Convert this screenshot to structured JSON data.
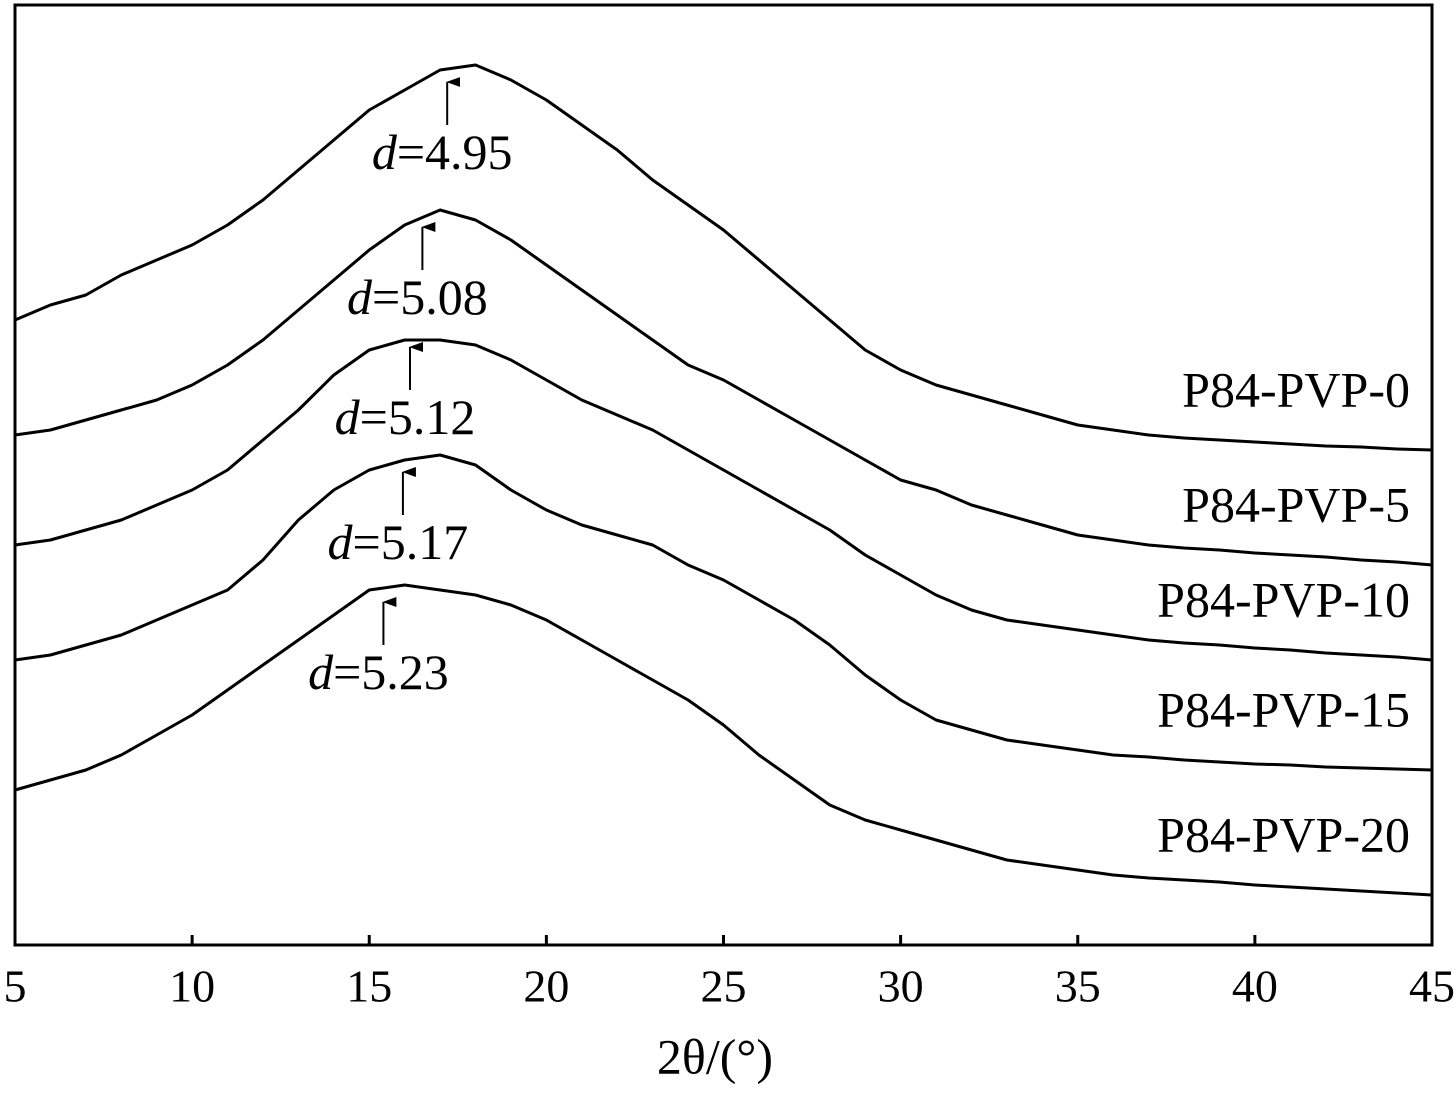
{
  "chart_data": {
    "type": "line",
    "x_label": "2θ/(°)",
    "x": [
      5,
      6,
      7,
      8,
      9,
      10,
      11,
      12,
      13,
      14,
      15,
      16,
      17,
      18,
      19,
      20,
      21,
      22,
      23,
      24,
      25,
      26,
      27,
      28,
      29,
      30,
      31,
      32,
      33,
      34,
      35,
      36,
      37,
      38,
      39,
      40,
      41,
      42,
      43,
      44,
      45
    ],
    "xlim": [
      5,
      45
    ],
    "xticks": [
      5,
      10,
      15,
      20,
      25,
      30,
      35,
      40,
      45
    ],
    "ylim": [
      0,
      940
    ],
    "color": "#000000",
    "series": [
      {
        "name": "P84-PVP-0",
        "values": [
          625,
          640,
          650,
          670,
          685,
          700,
          720,
          745,
          775,
          805,
          835,
          855,
          875,
          880,
          865,
          845,
          820,
          795,
          765,
          740,
          715,
          685,
          655,
          625,
          595,
          575,
          560,
          550,
          540,
          530,
          520,
          515,
          510,
          507,
          505,
          503,
          501,
          499,
          498,
          496,
          495
        ]
      },
      {
        "name": "P84-PVP-5",
        "values": [
          510,
          515,
          525,
          535,
          545,
          560,
          580,
          605,
          635,
          665,
          695,
          720,
          735,
          725,
          705,
          680,
          655,
          630,
          605,
          580,
          565,
          545,
          525,
          505,
          485,
          465,
          455,
          440,
          430,
          420,
          410,
          405,
          400,
          397,
          395,
          392,
          390,
          388,
          385,
          383,
          380
        ]
      },
      {
        "name": "P84-PVP-10",
        "values": [
          400,
          405,
          415,
          425,
          440,
          455,
          475,
          505,
          535,
          570,
          595,
          605,
          605,
          600,
          585,
          565,
          545,
          530,
          515,
          495,
          475,
          455,
          435,
          415,
          390,
          370,
          350,
          335,
          325,
          320,
          315,
          310,
          305,
          302,
          300,
          297,
          295,
          292,
          290,
          288,
          285
        ]
      },
      {
        "name": "P84-PVP-15",
        "values": [
          285,
          290,
          300,
          310,
          325,
          340,
          355,
          385,
          425,
          455,
          475,
          485,
          490,
          480,
          455,
          435,
          420,
          410,
          400,
          380,
          365,
          345,
          325,
          300,
          270,
          245,
          225,
          215,
          205,
          200,
          195,
          190,
          188,
          185,
          183,
          181,
          180,
          178,
          177,
          176,
          175
        ]
      },
      {
        "name": "P84-PVP-20",
        "values": [
          155,
          165,
          175,
          190,
          210,
          230,
          255,
          280,
          305,
          330,
          355,
          360,
          355,
          350,
          340,
          325,
          305,
          285,
          265,
          245,
          220,
          190,
          165,
          140,
          125,
          115,
          105,
          95,
          85,
          80,
          75,
          70,
          67,
          65,
          63,
          60,
          58,
          56,
          54,
          52,
          50
        ]
      }
    ],
    "annotations": [
      {
        "symbol": "d",
        "text": "=4.95",
        "x": 17.2,
        "y": 865
      },
      {
        "symbol": "d",
        "text": "=5.08",
        "x": 16.5,
        "y": 720
      },
      {
        "symbol": "d",
        "text": "=5.12",
        "x": 16.15,
        "y": 600
      },
      {
        "symbol": "d",
        "text": "=5.17",
        "x": 15.95,
        "y": 475
      },
      {
        "symbol": "d",
        "text": "=5.23",
        "x": 15.4,
        "y": 345
      }
    ]
  }
}
